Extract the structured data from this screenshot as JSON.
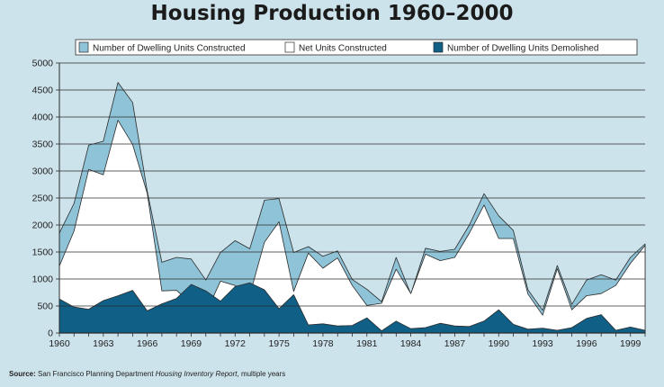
{
  "chart_data": {
    "type": "area",
    "title": "Housing Production 1960–2000",
    "x": [
      1960,
      1961,
      1962,
      1963,
      1964,
      1965,
      1966,
      1967,
      1968,
      1969,
      1970,
      1971,
      1972,
      1973,
      1974,
      1975,
      1976,
      1977,
      1978,
      1979,
      1980,
      1981,
      1982,
      1983,
      1984,
      1985,
      1986,
      1987,
      1988,
      1989,
      1990,
      1991,
      1992,
      1993,
      1994,
      1995,
      1996,
      1997,
      1998,
      1999,
      2000
    ],
    "series": [
      {
        "name": "Number of Dwelling Units Constructed",
        "color": "#8fc3d7",
        "values": [
          1850,
          2400,
          3480,
          3550,
          4640,
          4270,
          2630,
          1310,
          1400,
          1370,
          980,
          1490,
          1710,
          1560,
          2460,
          2490,
          1490,
          1600,
          1420,
          1520,
          990,
          810,
          580,
          1400,
          720,
          1570,
          1510,
          1550,
          2000,
          2580,
          2170,
          1900,
          800,
          420,
          1250,
          530,
          980,
          1080,
          980,
          1400,
          1650
        ]
      },
      {
        "name": "Net Units Constructed",
        "color": "#ffffff",
        "values": [
          1240,
          1890,
          3030,
          2930,
          3940,
          3490,
          2590,
          780,
          790,
          540,
          370,
          960,
          880,
          700,
          1680,
          2060,
          770,
          1480,
          1200,
          1390,
          880,
          510,
          550,
          1180,
          730,
          1460,
          1340,
          1400,
          1850,
          2370,
          1750,
          1750,
          720,
          330,
          1190,
          430,
          690,
          730,
          880,
          1290,
          1620
        ]
      },
      {
        "name": "Number of Dwelling Units Demolished",
        "color": "#0f5f86",
        "values": [
          630,
          480,
          440,
          600,
          690,
          790,
          410,
          540,
          640,
          900,
          780,
          590,
          860,
          930,
          800,
          450,
          710,
          150,
          170,
          130,
          140,
          280,
          40,
          220,
          80,
          100,
          180,
          130,
          120,
          220,
          430,
          160,
          70,
          90,
          50,
          100,
          270,
          340,
          50,
          110,
          50
        ]
      }
    ],
    "ylim": [
      0,
      5000
    ],
    "yticks": [
      "0",
      "500",
      "1000",
      "1500",
      "2000",
      "2500",
      "3000",
      "3500",
      "4000",
      "4500",
      "5000"
    ],
    "xticks": [
      "1960",
      "1963",
      "1966",
      "1969",
      "1972",
      "1975",
      "1978",
      "1981",
      "1984",
      "1987",
      "1990",
      "1993",
      "1996",
      "1999"
    ],
    "grid": "horizontal",
    "legend": "top"
  },
  "source": {
    "label": "Source:",
    "text": "San Francisco Planning Department",
    "report": "Housing Inventory Report",
    "suffix": ", multiple years"
  }
}
